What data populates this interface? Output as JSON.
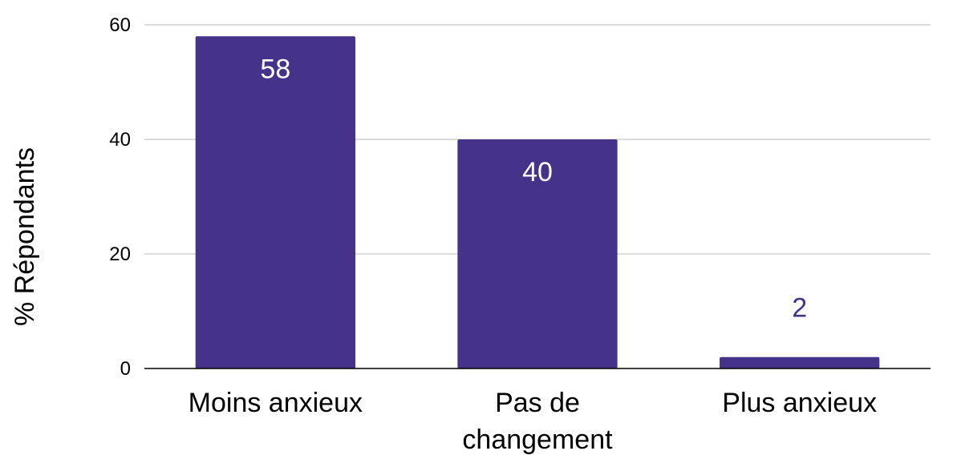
{
  "chart_data": {
    "type": "bar",
    "title": "",
    "xlabel": "",
    "ylabel": "% Répondants",
    "ylim": [
      0,
      60
    ],
    "yticks": [
      0,
      20,
      40,
      60
    ],
    "grid": true,
    "categories": [
      "Moins anxieux",
      "Pas de changement",
      "Plus anxieux"
    ],
    "category_lines": [
      [
        "Moins anxieux"
      ],
      [
        "Pas de",
        "changement"
      ],
      [
        "Plus anxieux"
      ]
    ],
    "values": [
      58,
      40,
      2
    ],
    "data_labels": [
      "58",
      "40",
      "2"
    ],
    "colors": {
      "bar": "#45338a",
      "label_inside": "#ffffff",
      "label_outside": "#45338a",
      "grid": "#c8c8c8",
      "axis": "#000000"
    }
  }
}
